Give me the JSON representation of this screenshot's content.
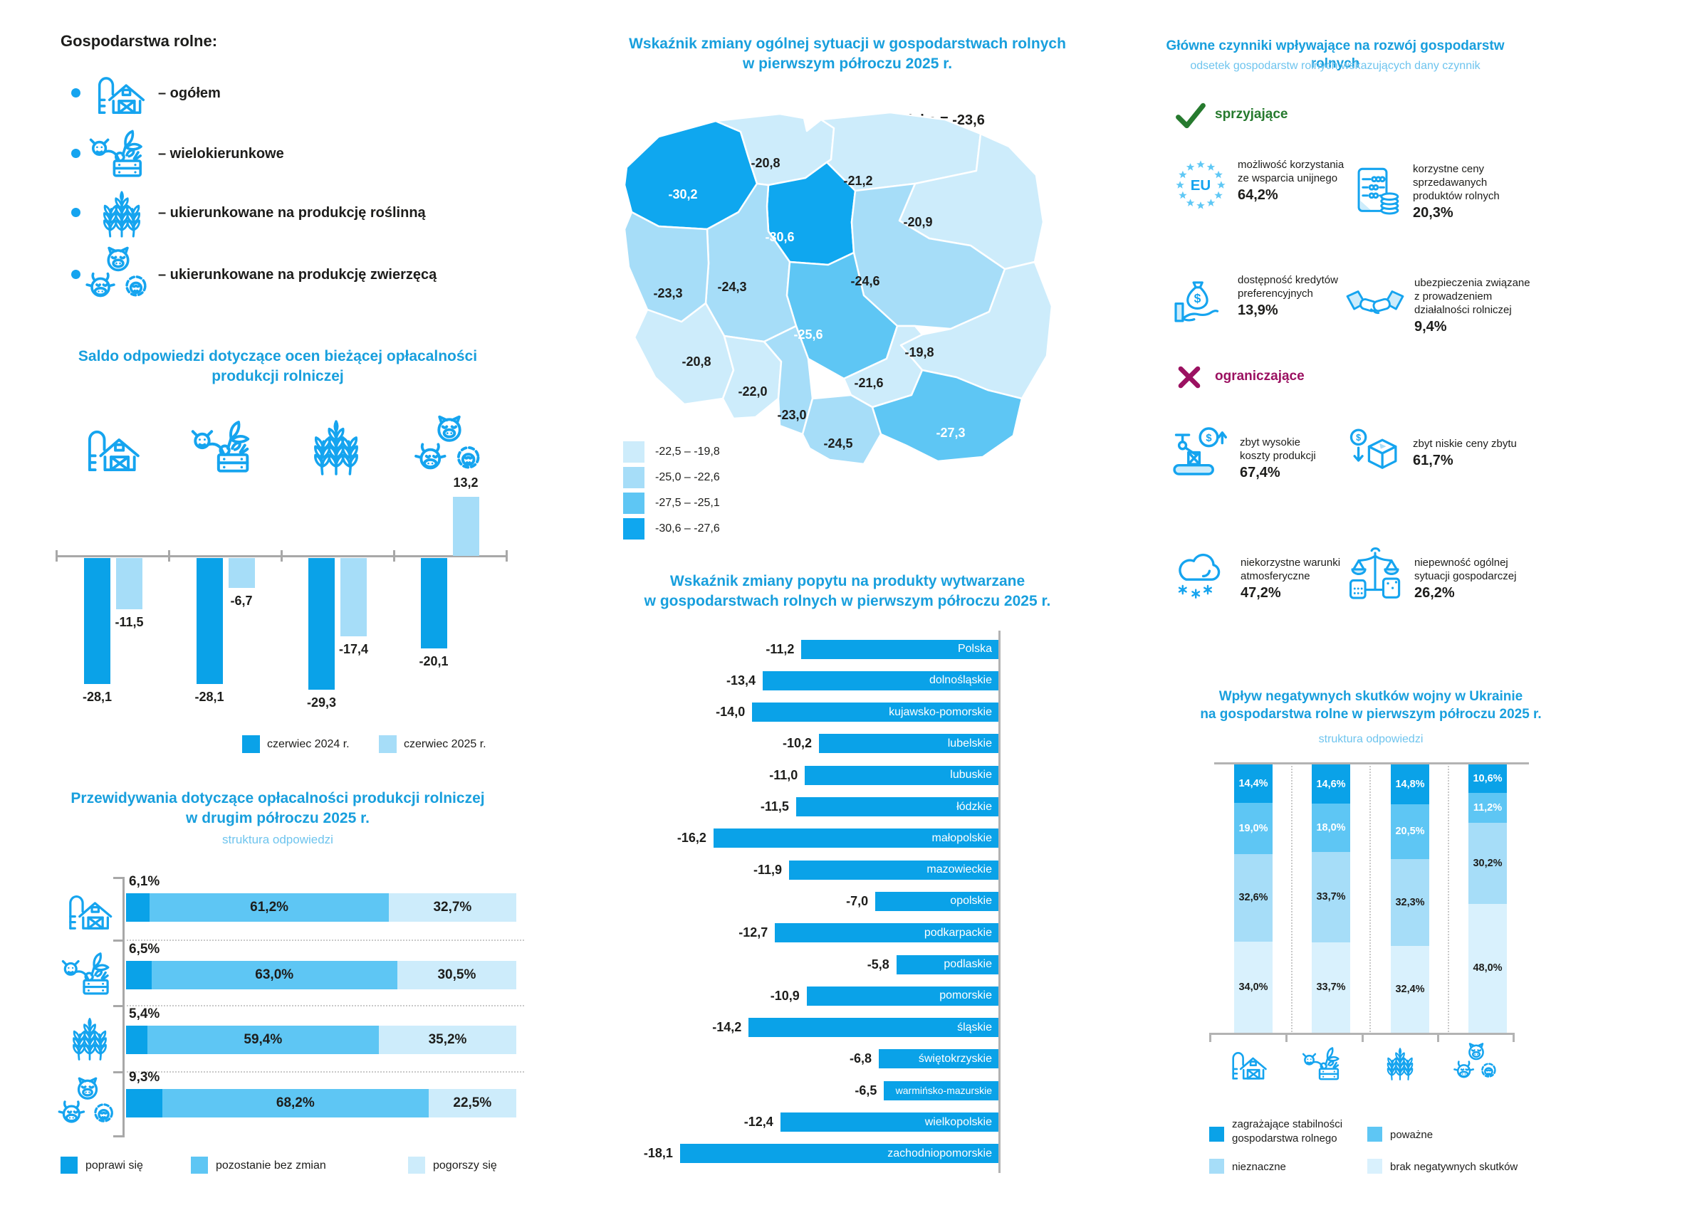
{
  "palette": {
    "accent": "#0fa7ef",
    "bar_dark": "#0aa2e8",
    "bar_medium": "#5ec6f4",
    "bar_light": "#a6ddf8",
    "bar_lightest": "#cdecfb",
    "bar_faint": "#d9f1fd",
    "title_blue": "#189fdd",
    "subtitle_blue": "#6ec4ee",
    "green": "#267a2e",
    "magenta": "#9b1161",
    "icon_blue": "#15a4ef"
  },
  "farm_types": {
    "heading": "Gospodarstwa rolne:",
    "items": [
      {
        "icon": "barn-icon",
        "label": "– ogółem"
      },
      {
        "icon": "mixed-farm-icon",
        "label": "– wielokierunkowe"
      },
      {
        "icon": "crop-icon",
        "label": "– ukierunkowane na produkcję roślinną"
      },
      {
        "icon": "livestock-icon",
        "label": "– ukierunkowane na produkcję zwierzęcą"
      }
    ]
  },
  "chart_data": [
    {
      "type": "bar",
      "title": "Saldo odpowiedzi dotyczące ocen bieżącej opłacalności produkcji rolniczej",
      "title_lines": [
        "Saldo odpowiedzi dotyczące ocen bieżącej opłacalności",
        "produkcji rolniczej"
      ],
      "categories": [
        "ogółem",
        "wielokierunkowe",
        "roślinne",
        "zwierzęce"
      ],
      "ylim": [
        -30,
        15
      ],
      "series": [
        {
          "name": "czerwiec 2024 r.",
          "values": [
            -28.1,
            -28.1,
            -29.3,
            -20.1
          ],
          "labels": [
            "-28,1",
            "-28,1",
            "-29,3",
            "-20,1"
          ]
        },
        {
          "name": "czerwiec 2025 r.",
          "values": [
            -11.5,
            -6.7,
            -17.4,
            13.2
          ],
          "labels": [
            "-11,5",
            "-6,7",
            "-17,4",
            "13,2"
          ]
        }
      ]
    },
    {
      "type": "heatmap",
      "title_lines": [
        "Wskaźnik zmiany ogólnej sytuacji w gospodarstwach rolnych",
        "w pierwszym półroczu 2025 r."
      ],
      "note": "Polska = -23,6",
      "regions": [
        {
          "id": "zachodniopomorskie",
          "value": -30.2,
          "label": "-30,2",
          "band": 4,
          "text": "white"
        },
        {
          "id": "pomorskie",
          "value": -20.8,
          "label": "-20,8",
          "band": 1,
          "text": "black"
        },
        {
          "id": "warminsko-mazurskie",
          "value": -21.2,
          "label": "-21,2",
          "band": 1,
          "text": "black"
        },
        {
          "id": "podlaskie",
          "value": -20.9,
          "label": "-20,9",
          "band": 1,
          "text": "black"
        },
        {
          "id": "kujawsko-pomorskie",
          "value": -30.6,
          "label": "-30,6",
          "band": 4,
          "text": "white"
        },
        {
          "id": "wielkopolskie",
          "value": -24.3,
          "label": "-24,3",
          "band": 2,
          "text": "black"
        },
        {
          "id": "lubuskie",
          "value": -23.3,
          "label": "-23,3",
          "band": 2,
          "text": "black"
        },
        {
          "id": "mazowieckie",
          "value": -24.6,
          "label": "-24,6",
          "band": 2,
          "text": "black"
        },
        {
          "id": "lodzkie",
          "value": -25.6,
          "label": "-25,6",
          "band": 3,
          "text": "white"
        },
        {
          "id": "lubelskie",
          "value": -19.8,
          "label": "-19,8",
          "band": 1,
          "text": "black"
        },
        {
          "id": "dolnoslaskie",
          "value": -20.8,
          "label": "-20,8",
          "band": 1,
          "text": "black"
        },
        {
          "id": "opolskie",
          "value": -22.0,
          "label": "-22,0",
          "band": 1,
          "text": "black"
        },
        {
          "id": "slaskie",
          "value": -23.0,
          "label": "-23,0",
          "band": 2,
          "text": "black"
        },
        {
          "id": "swietokrzyskie",
          "value": -21.6,
          "label": "-21,6",
          "band": 1,
          "text": "black"
        },
        {
          "id": "malopolskie",
          "value": -24.5,
          "label": "-24,5",
          "band": 2,
          "text": "black"
        },
        {
          "id": "podkarpackie",
          "value": -27.3,
          "label": "-27,3",
          "band": 3,
          "text": "white"
        }
      ],
      "legend": [
        {
          "range": "-22,5 – -19,8",
          "band": 1
        },
        {
          "range": "-25,0 – -22,6",
          "band": 2
        },
        {
          "range": "-27,5 –  -25,1",
          "band": 3
        },
        {
          "range": "-30,6 –  -27,6",
          "band": 4
        }
      ]
    },
    {
      "type": "bar",
      "title_lines": [
        "Przewidywania dotyczące opłacalności produkcji rolniczej",
        "w drugim półroczu 2025 r."
      ],
      "subtitle": "struktura odpowiedzi",
      "categories": [
        "ogółem",
        "wielokierunkowe",
        "roślinne",
        "zwierzęce"
      ],
      "series_labels": [
        "poprawi się",
        "pozostanie bez zmian",
        "pogorszy się"
      ],
      "rows": [
        {
          "values": [
            6.1,
            61.2,
            32.7
          ],
          "labels": [
            "6,1%",
            "61,2%",
            "32,7%"
          ]
        },
        {
          "values": [
            6.5,
            63.0,
            30.5
          ],
          "labels": [
            "6,5%",
            "63,0%",
            "30,5%"
          ]
        },
        {
          "values": [
            5.4,
            59.4,
            35.2
          ],
          "labels": [
            "5,4%",
            "59,4%",
            "35,2%"
          ]
        },
        {
          "values": [
            9.3,
            68.2,
            22.5
          ],
          "labels": [
            "9,3%",
            "68,2%",
            "22,5%"
          ]
        }
      ]
    },
    {
      "type": "bar",
      "title_lines": [
        "Wskaźnik zmiany popytu na produkty wytwarzane",
        "w gospodarstwach rolnych w pierwszym półroczu 2025 r."
      ],
      "rows": [
        {
          "region": "Polska",
          "value": -11.2,
          "label": "-11,2"
        },
        {
          "region": "dolnośląskie",
          "value": -13.4,
          "label": "-13,4"
        },
        {
          "region": "kujawsko-pomorskie",
          "value": -14.0,
          "label": "-14,0"
        },
        {
          "region": "lubelskie",
          "value": -10.2,
          "label": "-10,2"
        },
        {
          "region": "lubuskie",
          "value": -11.0,
          "label": "-11,0"
        },
        {
          "region": "łódzkie",
          "value": -11.5,
          "label": "-11,5"
        },
        {
          "region": "małopolskie",
          "value": -16.2,
          "label": "-16,2"
        },
        {
          "region": "mazowieckie",
          "value": -11.9,
          "label": "-11,9"
        },
        {
          "region": "opolskie",
          "value": -7.0,
          "label": "-7,0"
        },
        {
          "region": "podkarpackie",
          "value": -12.7,
          "label": "-12,7"
        },
        {
          "region": "podlaskie",
          "value": -5.8,
          "label": "-5,8"
        },
        {
          "region": "pomorskie",
          "value": -10.9,
          "label": "-10,9"
        },
        {
          "region": "śląskie",
          "value": -14.2,
          "label": "-14,2"
        },
        {
          "region": "świętokrzyskie",
          "value": -6.8,
          "label": "-6,8"
        },
        {
          "region": "warmińsko-mazurskie",
          "value": -6.5,
          "label": "-6,5"
        },
        {
          "region": "wielkopolskie",
          "value": -12.4,
          "label": "-12,4"
        },
        {
          "region": "zachodniopomorskie",
          "value": -18.1,
          "label": "-18,1"
        }
      ]
    },
    {
      "type": "bar",
      "title_lines": [
        "Wpływ negatywnych skutków wojny w Ukrainie",
        "na gospodarstwa rolne w pierwszym półroczu 2025 r."
      ],
      "subtitle": "struktura odpowiedzi",
      "categories": [
        "ogółem",
        "wielokierunkowe",
        "roślinne",
        "zwierzęce"
      ],
      "legend": [
        "zagrażające stabilności\ngospodarstwa rolnego",
        "poważne",
        "nieznaczne",
        "brak negatywnych skutków"
      ],
      "columns": [
        {
          "values": [
            14.4,
            19.0,
            32.6,
            34.0
          ],
          "labels": [
            "14,4%",
            "19,0%",
            "32,6%",
            "34,0%"
          ]
        },
        {
          "values": [
            14.6,
            18.0,
            33.7,
            33.7
          ],
          "labels": [
            "14,6%",
            "18,0%",
            "33,7%",
            "33,7%"
          ]
        },
        {
          "values": [
            14.8,
            20.5,
            32.3,
            32.4
          ],
          "labels": [
            "14,8%",
            "20,5%",
            "32,3%",
            "32,4%"
          ]
        },
        {
          "values": [
            10.6,
            11.2,
            30.2,
            48.0
          ],
          "labels": [
            "10,6%",
            "11,2%",
            "30,2%",
            "48,0%"
          ]
        }
      ]
    }
  ],
  "factors": {
    "title": "Główne czynniki wpływające na rozwój gospodarstw rolnych",
    "subtitle": "odsetek gospodarstw rolnych wskazujących dany czynnik",
    "favorable_label": "sprzyjające",
    "limiting_label": "ograniczające",
    "favorable": [
      {
        "icon": "eu-icon",
        "text": "możliwość korzystania\nze wsparcia unijnego",
        "value": "64,2%"
      },
      {
        "icon": "price-list-icon",
        "text": "korzystne ceny\nsprzedawanych\nproduktów rolnych",
        "value": "20,3%"
      },
      {
        "icon": "credit-icon",
        "text": "dostępność kredytów\npreferencyjnych",
        "value": "13,9%"
      },
      {
        "icon": "handshake-icon",
        "text": "ubezpieczenia związane\nz prowadzeniem\ndziałalności rolniczej",
        "value": "9,4%"
      }
    ],
    "limiting": [
      {
        "icon": "production-cost-icon",
        "text": "zbyt wysokie\nkoszty produkcji",
        "value": "67,4%"
      },
      {
        "icon": "low-price-icon",
        "text": "zbyt niskie ceny zbytu",
        "value": "61,7%"
      },
      {
        "icon": "weather-icon",
        "text": "niekorzystne warunki\natmosferyczne",
        "value": "47,2%"
      },
      {
        "icon": "scales-icon",
        "text": "niepewność ogólnej\nsytuacji gospodarczej",
        "value": "26,2%"
      }
    ]
  }
}
